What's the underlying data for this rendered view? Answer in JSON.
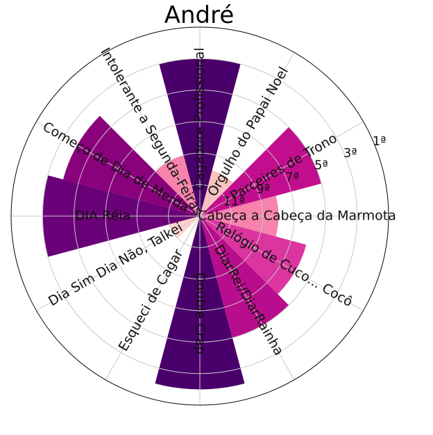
{
  "chart_data": {
    "type": "polar-bar",
    "title": "André",
    "categories": [
      "Cabeça a Cabeça da Marmota",
      "Parceires de Trono",
      "Orgulho do Papai Noel",
      "Cagadore Profissional",
      "Intolerante a Segunda-Feiras",
      "Começo de Dia de Merda",
      "DIA Réia",
      "Dia Sim Dia Não, Talkei",
      "Esqueci de Cagar",
      "Double Crap",
      "DiarRei/DiarRainha",
      "Relógio de Cuco... Cocô"
    ],
    "values": [
      5,
      8,
      3,
      10,
      4,
      9,
      10,
      2,
      1,
      11,
      8,
      7
    ],
    "colors": [
      "#f782ac",
      "#c20e8e",
      "#fcc2c0",
      "#49006a",
      "#f782ac",
      "#8a017c",
      "#6a0178",
      "#fcd2cc",
      "#fff7f3",
      "#4a006a",
      "#b80d8c",
      "#db359f"
    ],
    "radial_ticks": [
      "11ª",
      "9ª",
      "7ª",
      "5ª",
      "3ª",
      "1ª"
    ],
    "rmax": 12,
    "grid": true
  }
}
